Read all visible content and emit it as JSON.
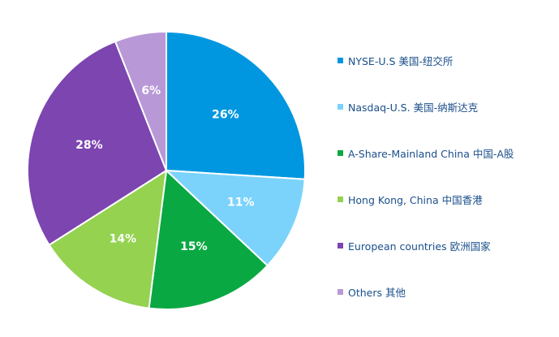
{
  "chart_data": {
    "type": "pie",
    "start_angle_deg": 0,
    "direction": "clockwise",
    "slices": [
      {
        "label": "NYSE-U.S 美国-纽交所",
        "value": 26,
        "value_label": "26%",
        "color": "#0097e0"
      },
      {
        "label": "Nasdaq-U.S. 美国-纳斯达克",
        "value": 11,
        "value_label": "11%",
        "color": "#7bd3fb"
      },
      {
        "label": "A-Share-Mainland China 中国-A股",
        "value": 15,
        "value_label": "15%",
        "color": "#0aa842"
      },
      {
        "label": "Hong Kong, China 中国香港",
        "value": 14,
        "value_label": "14%",
        "color": "#94d250"
      },
      {
        "label": "European countries 欧洲国家",
        "value": 28,
        "value_label": "28%",
        "color": "#7d45b0"
      },
      {
        "label": "Others 其他",
        "value": 6,
        "value_label": "6%",
        "color": "#b898d6"
      }
    ]
  }
}
